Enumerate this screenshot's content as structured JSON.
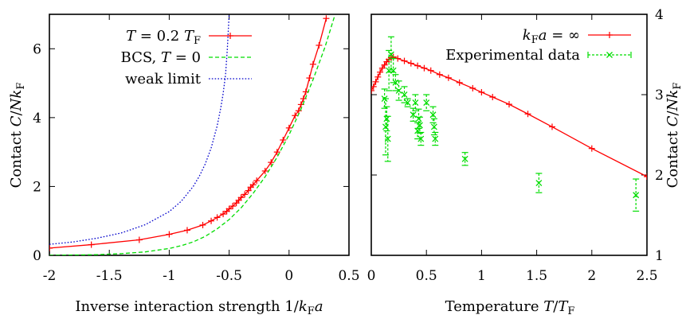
{
  "chart_data": [
    {
      "type": "line",
      "xlabel": "Inverse interaction strength 1/k_F a",
      "ylabel": "Contact C/Nk_F",
      "xlim": [
        -2,
        0.5
      ],
      "ylim": [
        0,
        7
      ],
      "xticks": [
        -2,
        -1.5,
        -1,
        -0.5,
        0,
        0.5
      ],
      "xtick_labels": [
        "-2",
        "-1.5",
        "-1",
        "-0.5",
        "0",
        "0.5"
      ],
      "yticks": [
        0,
        2,
        4,
        6
      ],
      "ytick_labels": [
        "0",
        "2",
        "4",
        "6"
      ],
      "grid": false,
      "legend_placement": "top-left",
      "series": [
        {
          "name": "T = 0.2 T_F",
          "color": "#ff0000",
          "style": "solid-plus",
          "x": [
            -2.0,
            -1.65,
            -1.25,
            -1.0,
            -0.85,
            -0.72,
            -0.65,
            -0.6,
            -0.55,
            -0.52,
            -0.5,
            -0.47,
            -0.44,
            -0.42,
            -0.4,
            -0.37,
            -0.34,
            -0.32,
            -0.3,
            -0.27,
            -0.2,
            -0.15,
            -0.1,
            -0.05,
            0.0,
            0.05,
            0.08,
            0.1,
            0.12,
            0.14,
            0.17,
            0.2,
            0.25,
            0.31
          ],
          "y": [
            0.21,
            0.31,
            0.45,
            0.61,
            0.73,
            0.88,
            1.0,
            1.1,
            1.2,
            1.28,
            1.35,
            1.43,
            1.52,
            1.6,
            1.68,
            1.77,
            1.88,
            1.98,
            2.05,
            2.17,
            2.45,
            2.7,
            3.0,
            3.35,
            3.7,
            4.06,
            4.2,
            4.38,
            4.55,
            4.75,
            5.15,
            5.55,
            6.1,
            6.88
          ]
        },
        {
          "name": "BCS, T = 0",
          "color": "#00dd00",
          "style": "dashed",
          "x": [
            -2.0,
            -1.6,
            -1.4,
            -1.2,
            -1.0,
            -0.9,
            -0.8,
            -0.7,
            -0.6,
            -0.5,
            -0.4,
            -0.3,
            -0.2,
            -0.1,
            0.0,
            0.1,
            0.2,
            0.3,
            0.38
          ],
          "y": [
            0.0,
            0.02,
            0.05,
            0.1,
            0.2,
            0.28,
            0.39,
            0.55,
            0.77,
            1.04,
            1.38,
            1.8,
            2.28,
            2.85,
            3.5,
            4.25,
            5.1,
            6.05,
            6.95
          ]
        },
        {
          "name": "weak limit",
          "color": "#0000cc",
          "style": "dotted",
          "x": [
            -2.0,
            -1.8,
            -1.6,
            -1.4,
            -1.2,
            -1.0,
            -0.9,
            -0.8,
            -0.75,
            -0.7,
            -0.65,
            -0.6,
            -0.57,
            -0.55,
            -0.53,
            -0.515,
            -0.5
          ],
          "y": [
            0.32,
            0.39,
            0.5,
            0.65,
            0.89,
            1.27,
            1.57,
            2.0,
            2.29,
            2.65,
            3.12,
            3.76,
            4.28,
            4.7,
            5.25,
            6.0,
            7.0
          ]
        }
      ],
      "legend": [
        {
          "label_parts": [
            {
              "t": "T",
              "i": true
            },
            {
              "t": " = 0.2 "
            },
            {
              "t": "T",
              "i": true
            },
            {
              "t": "F",
              "sub": true
            }
          ],
          "series": 0
        },
        {
          "label_parts": [
            {
              "t": "BCS, "
            },
            {
              "t": "T",
              "i": true
            },
            {
              "t": " = 0"
            }
          ],
          "series": 1
        },
        {
          "label_parts": [
            {
              "t": "weak limit"
            }
          ],
          "series": 2
        }
      ]
    },
    {
      "type": "line",
      "xlabel": "Temperature T/T_F",
      "ylabel": "Contact C/Nk_F",
      "xlim": [
        0,
        2.5
      ],
      "ylim": [
        1,
        4
      ],
      "xticks": [
        0,
        0.5,
        1,
        1.5,
        2,
        2.5
      ],
      "xtick_labels": [
        "0",
        "0.5",
        "1",
        "1.5",
        "2",
        "2.5"
      ],
      "yticks": [
        1,
        2,
        3,
        4
      ],
      "ytick_labels": [
        "1",
        "2",
        "3",
        "4"
      ],
      "grid": false,
      "legend_placement": "top-right",
      "series": [
        {
          "name": "k_F a = ∞",
          "color": "#ff0000",
          "style": "solid-plus",
          "x": [
            0.0,
            0.02,
            0.04,
            0.06,
            0.08,
            0.1,
            0.12,
            0.14,
            0.16,
            0.18,
            0.2,
            0.24,
            0.3,
            0.36,
            0.42,
            0.48,
            0.54,
            0.62,
            0.7,
            0.8,
            0.92,
            1.0,
            1.1,
            1.25,
            1.42,
            1.64,
            2.0,
            2.5
          ],
          "y": [
            3.05,
            3.1,
            3.16,
            3.22,
            3.28,
            3.33,
            3.37,
            3.41,
            3.44,
            3.46,
            3.47,
            3.45,
            3.42,
            3.39,
            3.36,
            3.33,
            3.3,
            3.25,
            3.21,
            3.15,
            3.08,
            3.03,
            2.97,
            2.88,
            2.76,
            2.6,
            2.33,
            1.98
          ]
        },
        {
          "name": "Experimental data",
          "color": "#00dd00",
          "style": "errorbar-x",
          "x": [
            0.12,
            0.13,
            0.14,
            0.15,
            0.16,
            0.18,
            0.2,
            0.22,
            0.25,
            0.3,
            0.33,
            0.38,
            0.4,
            0.42,
            0.43,
            0.44,
            0.45,
            0.5,
            0.56,
            0.57,
            0.58,
            0.85,
            1.52,
            2.4
          ],
          "y": [
            2.95,
            2.6,
            2.7,
            2.45,
            3.3,
            3.5,
            3.3,
            3.15,
            3.05,
            3.0,
            2.9,
            2.75,
            2.9,
            2.55,
            2.7,
            2.62,
            2.45,
            2.9,
            2.75,
            2.6,
            2.45,
            2.2,
            1.9,
            1.75
          ],
          "yerr": [
            0.12,
            0.35,
            0.15,
            0.28,
            0.25,
            0.22,
            0.15,
            0.1,
            0.12,
            0.1,
            0.05,
            0.08,
            0.1,
            0.1,
            0.12,
            0.1,
            0.08,
            0.1,
            0.1,
            0.1,
            0.08,
            0.08,
            0.12,
            0.2
          ]
        }
      ],
      "legend": [
        {
          "label_parts": [
            {
              "t": "k",
              "i": true
            },
            {
              "t": "F",
              "sub": true
            },
            {
              "t": "a",
              "i": true
            },
            {
              "t": " = ∞"
            }
          ],
          "series": 0
        },
        {
          "label_parts": [
            {
              "t": "Experimental data"
            }
          ],
          "series": 1
        }
      ]
    }
  ]
}
